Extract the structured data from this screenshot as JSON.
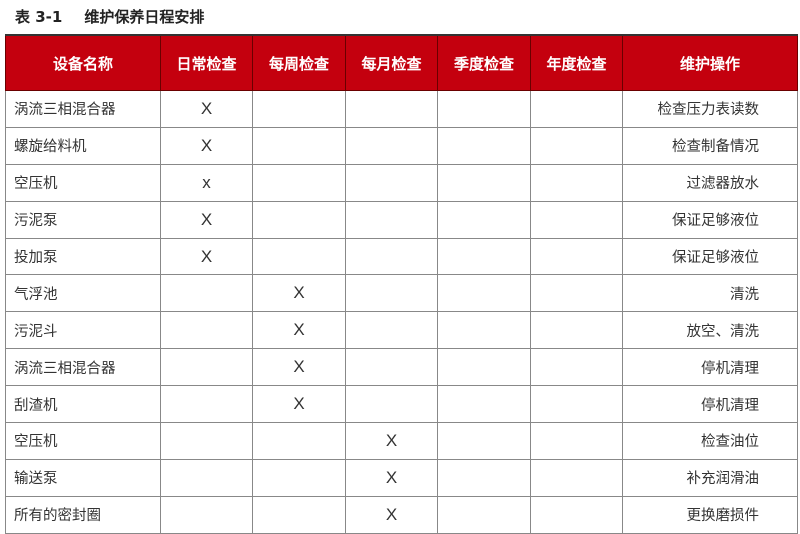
{
  "title": {
    "number": "表 3-1",
    "text": "维护保养日程安排"
  },
  "header_color": "#c4000e",
  "columns": [
    "设备名称",
    "日常检查",
    "每周检查",
    "每月检查",
    "季度检查",
    "年度检查",
    "维护操作"
  ],
  "rows": [
    {
      "name": "涡流三相混合器",
      "marks": [
        "X",
        "",
        "",
        "",
        ""
      ],
      "op": "检查压力表读数"
    },
    {
      "name": "螺旋给料机",
      "marks": [
        "X",
        "",
        "",
        "",
        ""
      ],
      "op": "检查制备情况"
    },
    {
      "name": "空压机",
      "marks": [
        "x",
        "",
        "",
        "",
        ""
      ],
      "op": "过滤器放水"
    },
    {
      "name": "污泥泵",
      "marks": [
        "X",
        "",
        "",
        "",
        ""
      ],
      "op": "保证足够液位"
    },
    {
      "name": "投加泵",
      "marks": [
        "X",
        "",
        "",
        "",
        ""
      ],
      "op": "保证足够液位"
    },
    {
      "name": "气浮池",
      "marks": [
        "",
        "X",
        "",
        "",
        ""
      ],
      "op": "清洗"
    },
    {
      "name": "污泥斗",
      "marks": [
        "",
        "X",
        "",
        "",
        ""
      ],
      "op": "放空、清洗"
    },
    {
      "name": "涡流三相混合器",
      "marks": [
        "",
        "X",
        "",
        "",
        ""
      ],
      "op": "停机清理"
    },
    {
      "name": "刮渣机",
      "marks": [
        "",
        "X",
        "",
        "",
        ""
      ],
      "op": "停机清理"
    },
    {
      "name": "空压机",
      "marks": [
        "",
        "",
        "X",
        "",
        ""
      ],
      "op": "检查油位"
    },
    {
      "name": "输送泵",
      "marks": [
        "",
        "",
        "X",
        "",
        ""
      ],
      "op": "补充润滑油"
    },
    {
      "name": "所有的密封圈",
      "marks": [
        "",
        "",
        "X",
        "",
        ""
      ],
      "op": "更换磨损件"
    }
  ]
}
